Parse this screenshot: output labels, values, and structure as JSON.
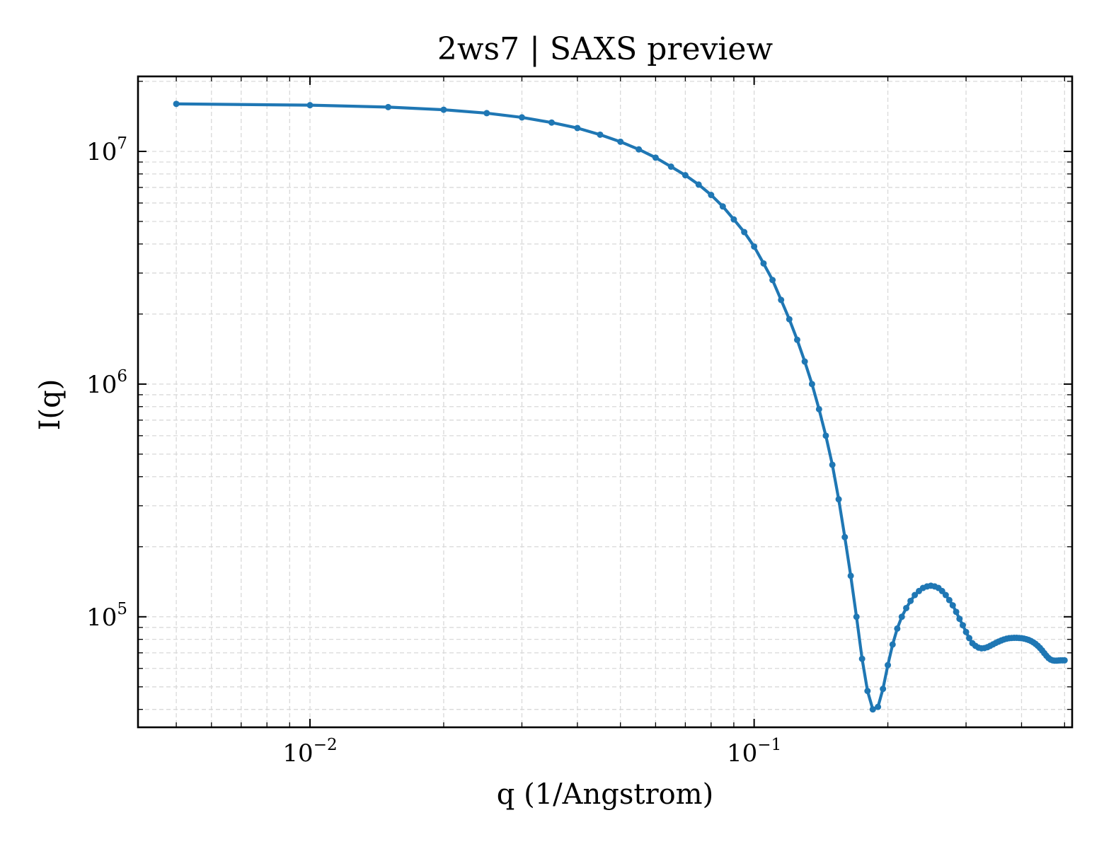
{
  "chart_data": {
    "type": "line",
    "title": "2ws7 | SAXS preview",
    "xlabel": "q (1/Angstrom)",
    "ylabel": "I(q)",
    "xscale": "log",
    "yscale": "log",
    "xlim": [
      0.0041,
      0.52
    ],
    "ylim": [
      33500,
      21000000
    ],
    "x_ticks": [
      {
        "value": 0.01,
        "base": "10",
        "exp": "−2"
      },
      {
        "value": 0.1,
        "base": "10",
        "exp": "−1"
      }
    ],
    "y_ticks": [
      {
        "value": 100000,
        "base": "10",
        "exp": "5"
      },
      {
        "value": 1000000,
        "base": "10",
        "exp": "6"
      },
      {
        "value": 10000000,
        "base": "10",
        "exp": "7"
      }
    ],
    "grid": true,
    "legend": "none",
    "colors": {
      "series": "#1f77b4",
      "grid": "#d9d9d9",
      "axes": "#000000"
    },
    "series": [
      {
        "marker": "circle",
        "x": [
          0.005,
          0.01,
          0.015,
          0.02,
          0.025,
          0.03,
          0.035,
          0.04,
          0.045,
          0.05,
          0.055,
          0.06,
          0.065,
          0.07,
          0.075,
          0.08,
          0.085,
          0.09,
          0.095,
          0.1,
          0.105,
          0.11,
          0.115,
          0.12,
          0.125,
          0.13,
          0.135,
          0.14,
          0.145,
          0.15,
          0.155,
          0.16,
          0.165,
          0.17,
          0.175,
          0.18,
          0.185,
          0.19,
          0.195,
          0.2,
          0.205,
          0.21,
          0.215,
          0.22,
          0.225,
          0.23,
          0.235,
          0.24,
          0.245,
          0.25,
          0.255,
          0.26,
          0.265,
          0.27,
          0.275,
          0.28,
          0.285,
          0.29,
          0.295,
          0.3,
          0.305,
          0.31,
          0.315,
          0.32,
          0.325,
          0.33,
          0.335,
          0.34,
          0.345,
          0.35,
          0.355,
          0.36,
          0.365,
          0.37,
          0.375,
          0.38,
          0.385,
          0.39,
          0.395,
          0.4,
          0.405,
          0.41,
          0.415,
          0.42,
          0.425,
          0.43,
          0.435,
          0.44,
          0.445,
          0.45,
          0.455,
          0.46,
          0.465,
          0.47,
          0.475,
          0.48,
          0.485,
          0.49,
          0.495,
          0.5
        ],
        "y": [
          16000000,
          15800000,
          15500000,
          15100000,
          14600000,
          14000000,
          13300000,
          12600000,
          11800000,
          11000000,
          10200000,
          9400000,
          8600000,
          7900000,
          7200000,
          6500000,
          5800000,
          5100000,
          4500000,
          3900000,
          3300000,
          2800000,
          2300000,
          1900000,
          1550000,
          1250000,
          1000000,
          780000,
          600000,
          450000,
          320000,
          220000,
          150000,
          100000,
          66000,
          48000,
          40000,
          41000,
          49000,
          62000,
          76000,
          89000,
          100000,
          109000,
          117000,
          124000,
          129000,
          133000,
          135000,
          136000,
          135000,
          133000,
          129000,
          124000,
          118000,
          112000,
          105000,
          98000,
          92000,
          86000,
          81000,
          77000,
          75000,
          73700,
          73200,
          73400,
          74000,
          75000,
          76100,
          77200,
          78200,
          79100,
          79900,
          80500,
          80900,
          81100,
          81200,
          81200,
          81100,
          80900,
          80600,
          80100,
          79500,
          78700,
          77700,
          76500,
          75100,
          73500,
          71700,
          69800,
          68000,
          66500,
          65500,
          65000,
          64800,
          64800,
          64900,
          65000,
          65000,
          65000
        ]
      }
    ]
  }
}
